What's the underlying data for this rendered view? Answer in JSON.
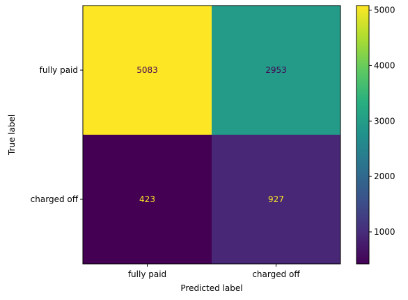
{
  "chart_data": {
    "type": "heatmap",
    "title": "",
    "xlabel": "Predicted label",
    "ylabel": "True label",
    "x_categories": [
      "fully paid",
      "charged off"
    ],
    "y_categories": [
      "fully paid",
      "charged off"
    ],
    "matrix": [
      [
        5083,
        2953
      ],
      [
        423,
        927
      ]
    ],
    "colormap": "viridis",
    "color_range": [
      423,
      5083
    ],
    "colorbar_ticks": [
      1000,
      2000,
      3000,
      4000,
      5000
    ],
    "text_color_dark": "#440154",
    "text_color_light": "#fde725"
  }
}
